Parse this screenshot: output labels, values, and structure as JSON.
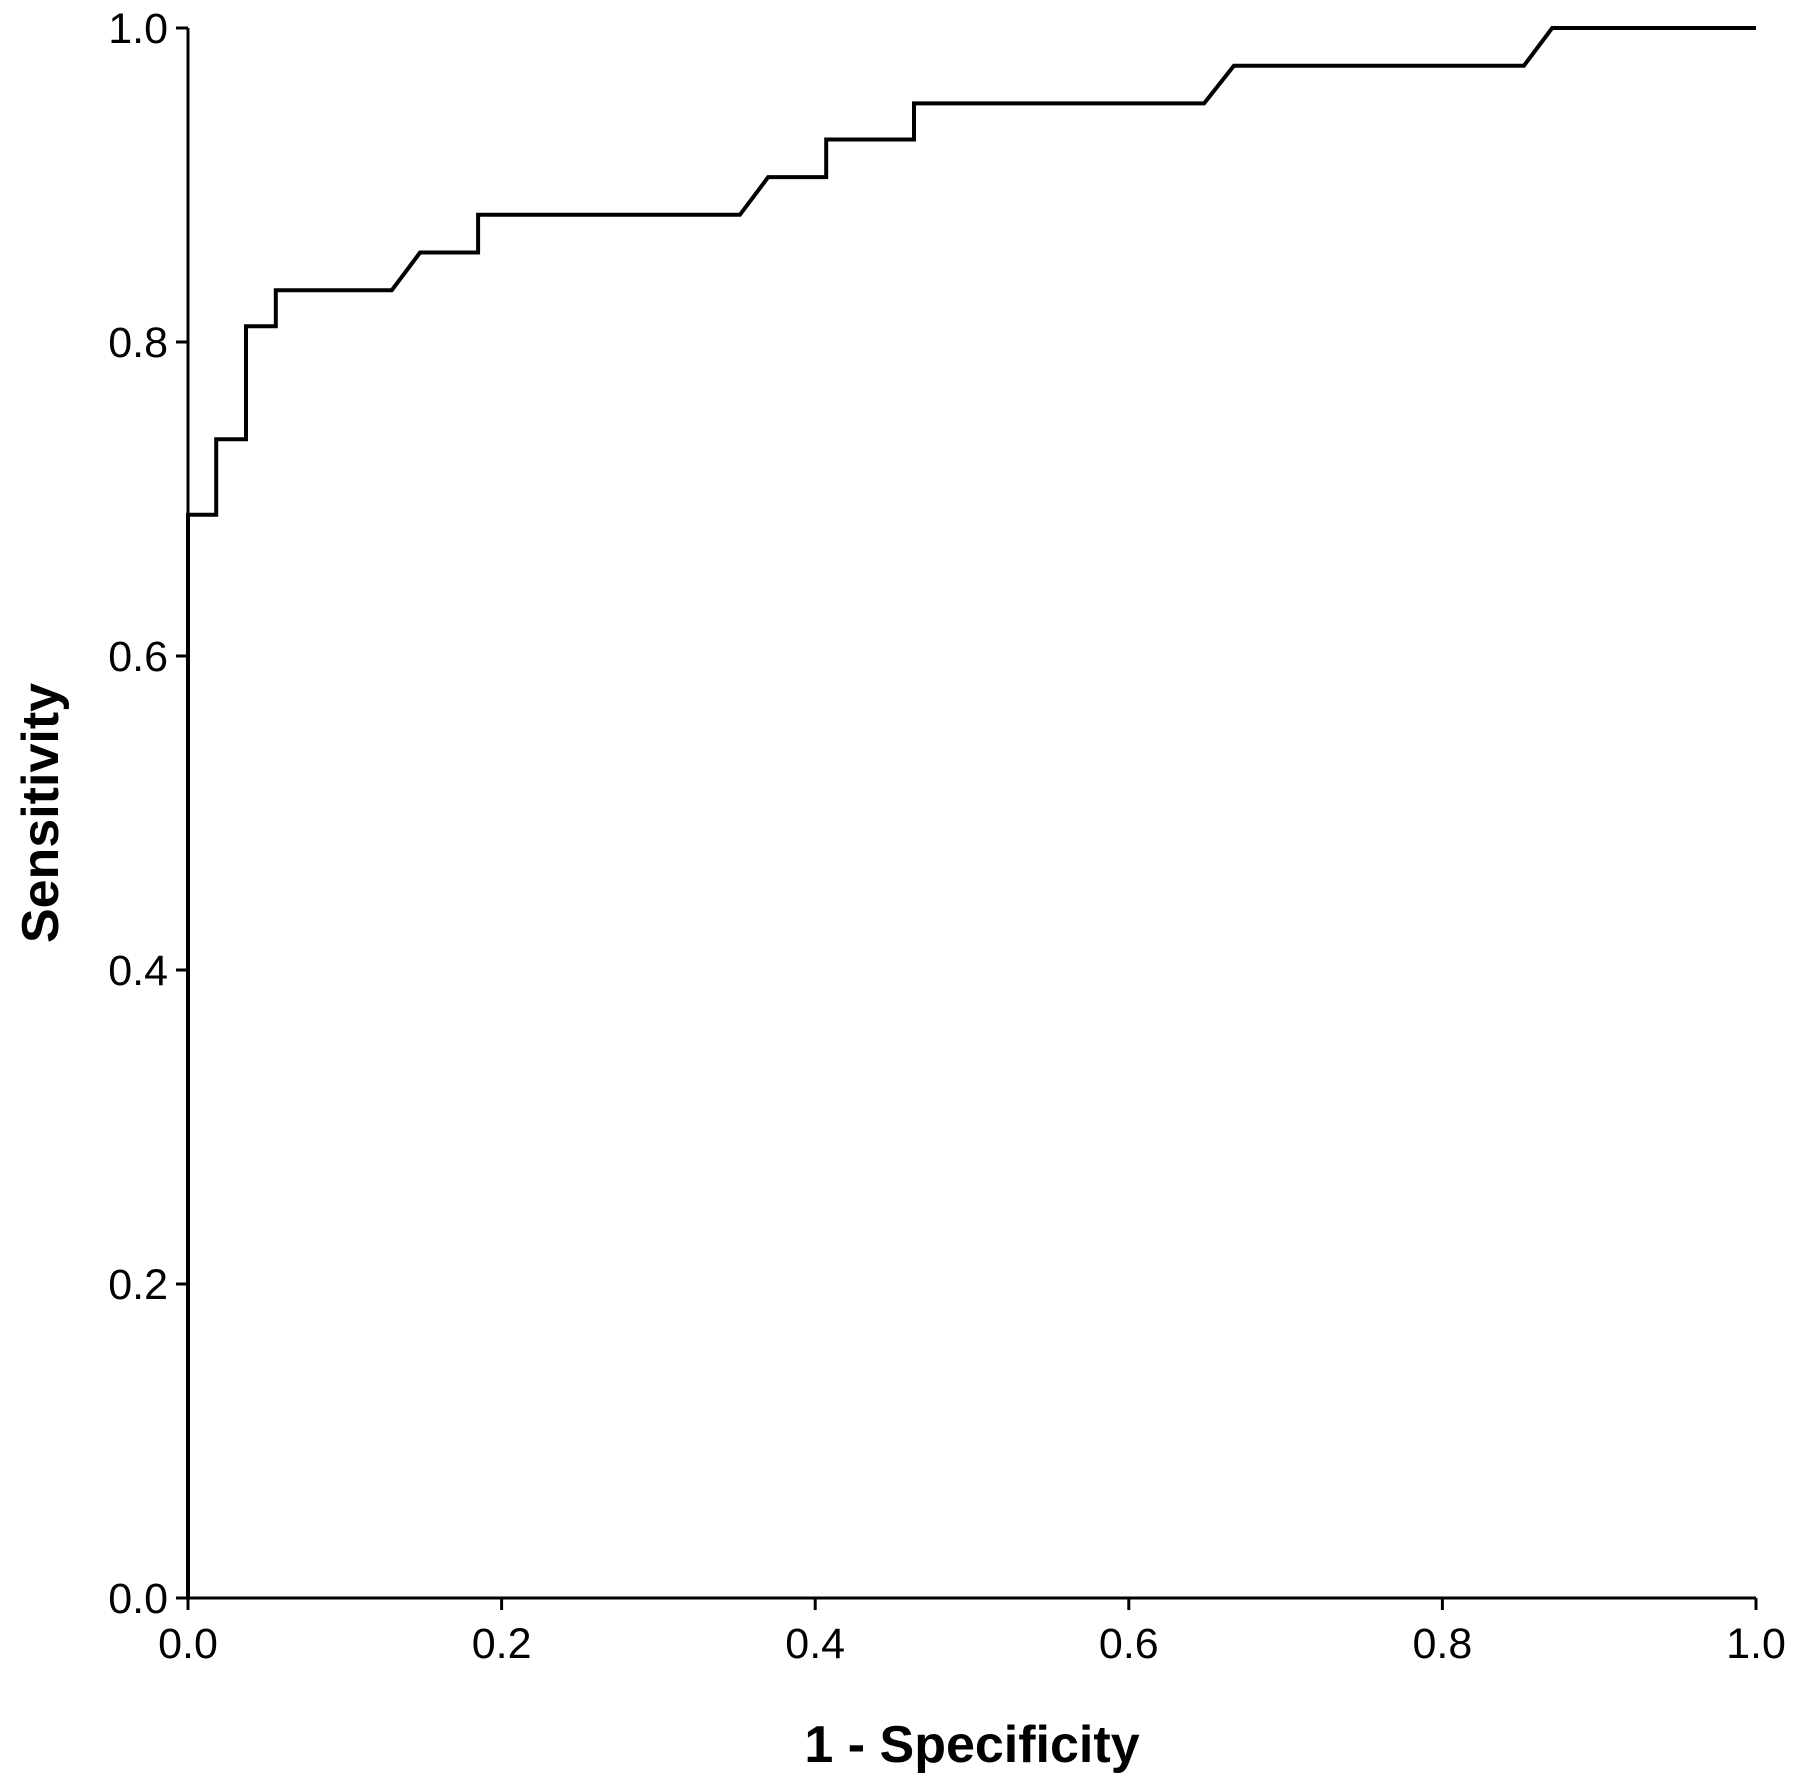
{
  "chart_data": {
    "type": "line",
    "title": "",
    "xlabel": "1 - Specificity",
    "ylabel": "Sensitivity",
    "xlim": [
      0.0,
      1.0
    ],
    "ylim": [
      0.0,
      1.0
    ],
    "xticks": [
      "0.0",
      "0.2",
      "0.4",
      "0.6",
      "0.8",
      "1.0"
    ],
    "yticks": [
      "0.0",
      "0.2",
      "0.4",
      "0.6",
      "0.8",
      "1.0"
    ],
    "grid": false,
    "legend": "none",
    "line_color": "#000000",
    "series": [
      {
        "x": [
          0.0,
          0.0,
          0.018,
          0.018,
          0.037,
          0.037,
          0.056,
          0.056,
          0.13,
          0.148,
          0.185,
          0.185,
          0.352,
          0.37,
          0.407,
          0.407,
          0.463,
          0.463,
          0.648,
          0.667,
          0.852,
          0.87,
          1.0
        ],
        "y": [
          0.0,
          0.69,
          0.69,
          0.738,
          0.738,
          0.81,
          0.81,
          0.833,
          0.833,
          0.857,
          0.857,
          0.881,
          0.881,
          0.905,
          0.905,
          0.929,
          0.929,
          0.952,
          0.952,
          0.976,
          0.976,
          1.0,
          1.0
        ]
      }
    ]
  }
}
